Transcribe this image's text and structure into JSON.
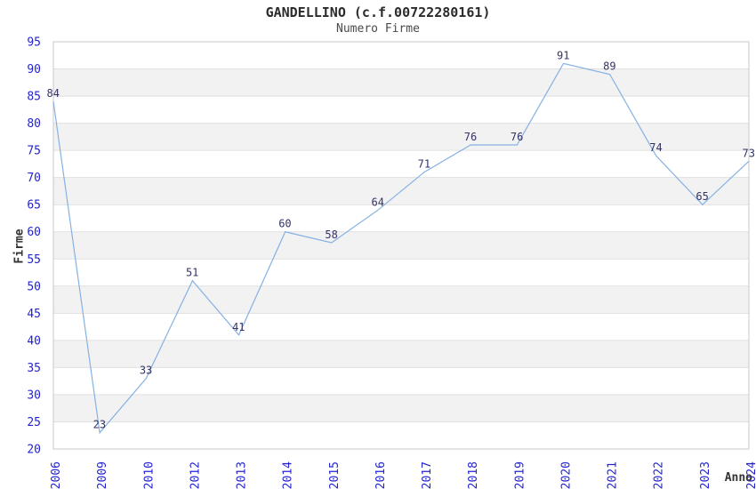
{
  "header": {
    "title": "GANDELLINO (c.f.00722280161)",
    "subtitle": "Numero Firme"
  },
  "chart_data": {
    "type": "line",
    "title": "GANDELLINO (c.f.00722280161)",
    "subtitle": "Numero Firme",
    "xlabel": "Anno",
    "ylabel": "Firme",
    "categories": [
      "2006",
      "2009",
      "2010",
      "2012",
      "2013",
      "2014",
      "2015",
      "2016",
      "2017",
      "2018",
      "2019",
      "2020",
      "2021",
      "2022",
      "2023",
      "2024"
    ],
    "values": [
      84,
      23,
      33,
      51,
      41,
      60,
      58,
      64,
      71,
      76,
      76,
      91,
      89,
      74,
      65,
      73
    ],
    "ylim": [
      20,
      95
    ],
    "yticks": [
      20,
      25,
      30,
      35,
      40,
      45,
      50,
      55,
      60,
      65,
      70,
      75,
      80,
      85,
      90,
      95
    ],
    "ytick_step": 5,
    "grid": "alternating-horizontal-bands",
    "legend": "none",
    "point_labels_visible": true,
    "x_tick_rotation_deg": -90,
    "colors": {
      "line": "#85b1e3",
      "tick_label": "#2323d1",
      "point_label": "#333366",
      "band_gray": "#f2f2f2",
      "plot_border": "#c8c8c8",
      "gridline": "#e0e0e0",
      "title_text": "#2b2b2b",
      "axis_title_text": "#333333"
    }
  }
}
